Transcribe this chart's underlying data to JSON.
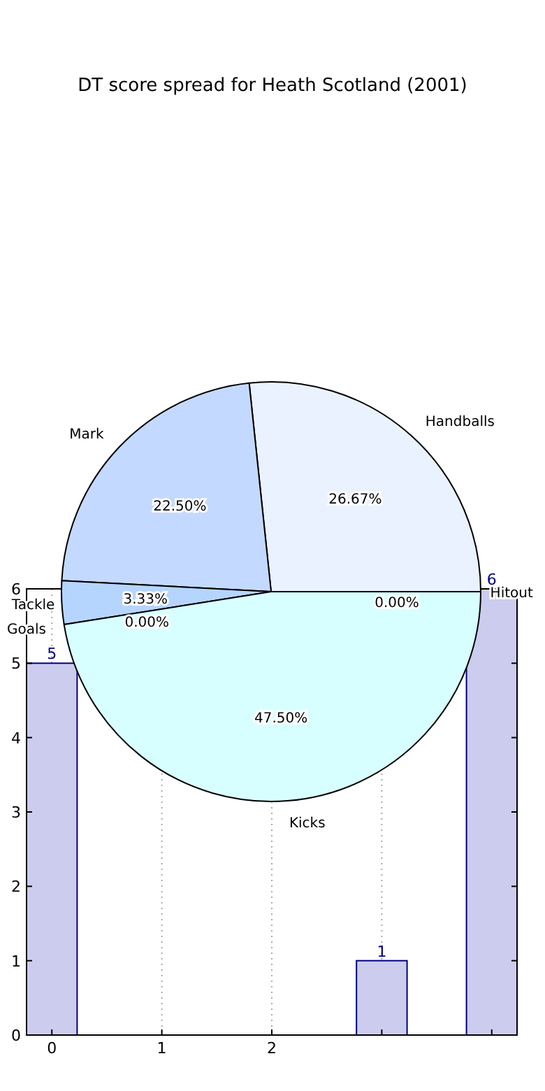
{
  "chart_data": [
    {
      "type": "pie",
      "title": "DT score spread for Heath Scotland (2001)",
      "categories": [
        "Handballs",
        "Mark",
        "Tackle",
        "Goals",
        "Kicks",
        "Hitout"
      ],
      "values": [
        26.67,
        22.5,
        3.33,
        0,
        47.5,
        0
      ],
      "colors": [
        "#eaf2ff",
        "#c4d9ff",
        "#b5d5ff",
        null,
        "#d8ffff",
        null
      ],
      "value_labels": [
        "26.67%",
        "22.50%",
        "3.33%",
        "0.00%",
        "47.50%",
        "0.00%"
      ]
    },
    {
      "type": "bar",
      "categories": [
        "0",
        "1",
        "2",
        null,
        null
      ],
      "values": [
        5,
        null,
        null,
        1,
        6
      ],
      "color": "#ccccee",
      "value_labels": [
        "5",
        null,
        null,
        "1",
        "6"
      ],
      "ylim": [
        0,
        6
      ],
      "yticks": [
        0,
        1,
        2,
        3,
        4,
        5,
        6
      ],
      "grid": "x"
    }
  ]
}
